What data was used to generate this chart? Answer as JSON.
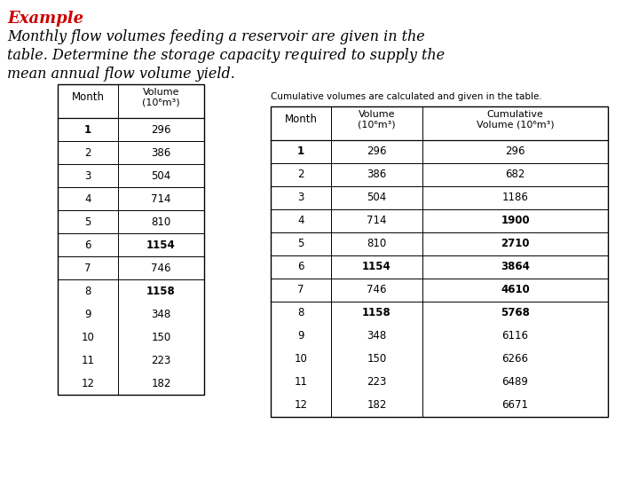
{
  "title": "Example",
  "desc_line1": "Monthly flow volumes feeding a reservoir are given in the",
  "desc_line2": "table. Determine the storage capacity required to supply the",
  "desc_line3": "mean annual flow volume yield.",
  "months": [
    1,
    2,
    3,
    4,
    5,
    6,
    7,
    8,
    9,
    10,
    11,
    12
  ],
  "volumes": [
    296,
    386,
    504,
    714,
    810,
    1154,
    746,
    1158,
    348,
    150,
    223,
    182
  ],
  "cumulative": [
    296,
    682,
    1186,
    1900,
    2710,
    3864,
    4610,
    5768,
    6116,
    6266,
    6489,
    6671
  ],
  "note": "Cumulative volumes are calculated and given in the table.",
  "background_color": "#ffffff",
  "title_color": "#cc0000",
  "text_color": "#000000",
  "vol_bold_months": [
    6,
    8
  ],
  "month1_bold": true,
  "no_divider_after": [
    8,
    9,
    10,
    11
  ],
  "cum_bold_months": [
    4,
    5,
    6,
    7,
    8
  ],
  "t1_header2": "Volume\n(10⁶m³)",
  "t2_header2": "Volume\n(10⁶m³)",
  "t2_header3": "Cumulative\nVolume (10⁶m³)"
}
